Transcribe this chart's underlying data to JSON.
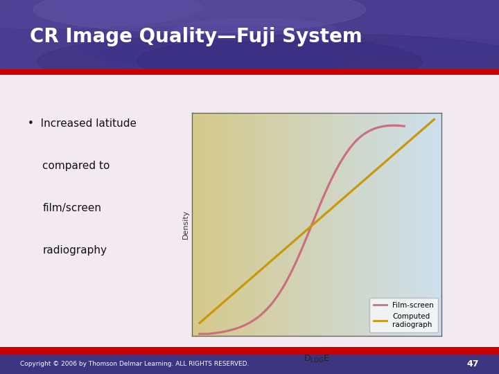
{
  "title": "CR Image Quality—Fuji System",
  "title_color": "#ffffff",
  "slide_bg_top": "#e8dce8",
  "slide_bg": "#f2eaf0",
  "red_stripe_color": "#cc0000",
  "bullet_text_line1": "•  Increased latitude",
  "bullet_text_rest": [
    "compared to",
    "film/screen",
    "radiography"
  ],
  "bullet_color": "#111111",
  "footer_text": "Copyright © 2006 by Thomson Delmar Learning. ALL RIGHTS RESERVED.",
  "footer_page": "47",
  "footer_bg": "#3d3580",
  "footer_text_color": "#ffffff",
  "chart_bg_left": "#d6c98a",
  "chart_bg_right": "#cde0ed",
  "chart_border_color": "#666666",
  "film_screen_color": "#c87080",
  "computed_radio_color": "#c8980a",
  "ylabel": "Density",
  "xlabel_str": "D",
  "xlabel_sub": "LOG",
  "xlabel_end": "E"
}
